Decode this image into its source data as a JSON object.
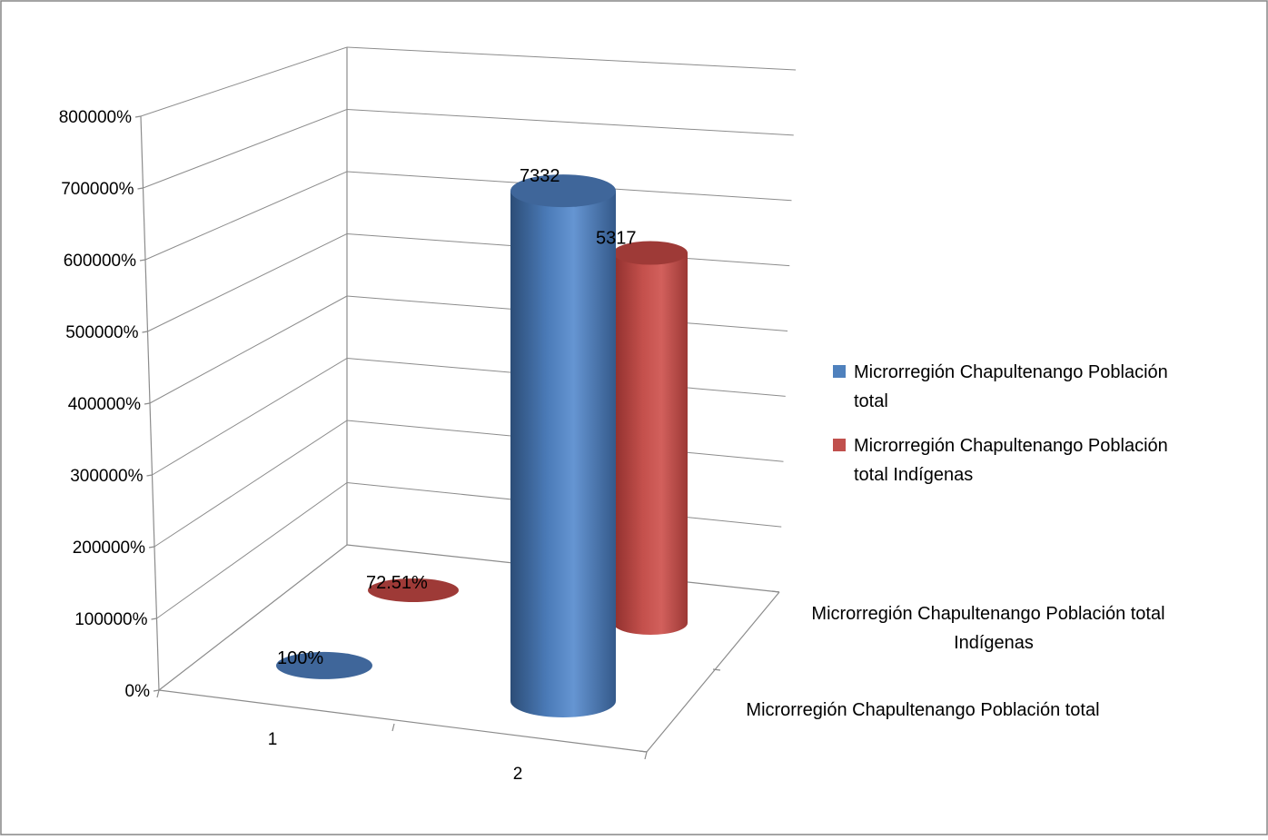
{
  "chart_data": {
    "type": "bar",
    "style": "3d-cylinder",
    "title": "",
    "xlabel": "",
    "ylabel": "",
    "categories": [
      "1",
      "2"
    ],
    "depth_categories": [
      "Microrregión Chapultenango Población total",
      "Microrregión Chapultenango Población total Indígenas"
    ],
    "ylim": [
      0,
      8000
    ],
    "y_ticks": [
      0,
      1000,
      2000,
      3000,
      4000,
      5000,
      6000,
      7000,
      8000
    ],
    "y_tick_labels": [
      "0%",
      "100000%",
      "200000%",
      "300000%",
      "400000%",
      "500000%",
      "600000%",
      "700000%",
      "800000%"
    ],
    "y_axis_format": "percent",
    "series": [
      {
        "name": "Microrregión Chapultenango Población total",
        "color": "#4f81bd",
        "values": [
          1,
          7332
        ],
        "data_labels": [
          "100%",
          "7332"
        ]
      },
      {
        "name": "Microrregión Chapultenango Población total Indígenas",
        "color": "#c0504d",
        "values": [
          0.7251,
          5317
        ],
        "data_labels": [
          "72.51%",
          "5317"
        ]
      }
    ],
    "grid": true,
    "legend_position": "right"
  },
  "legend": {
    "items": [
      {
        "line1": "Microrregión Chapultenango Población",
        "line2": "total",
        "color": "#4f81bd"
      },
      {
        "line1": "Microrregión Chapultenango Población",
        "line2": "total Indígenas",
        "color": "#c0504d"
      }
    ]
  },
  "depth_axis": {
    "front_label": "Microrregión Chapultenango Población total",
    "back_label_line1": "Microrregión Chapultenango Población total",
    "back_label_line2": "Indígenas"
  }
}
